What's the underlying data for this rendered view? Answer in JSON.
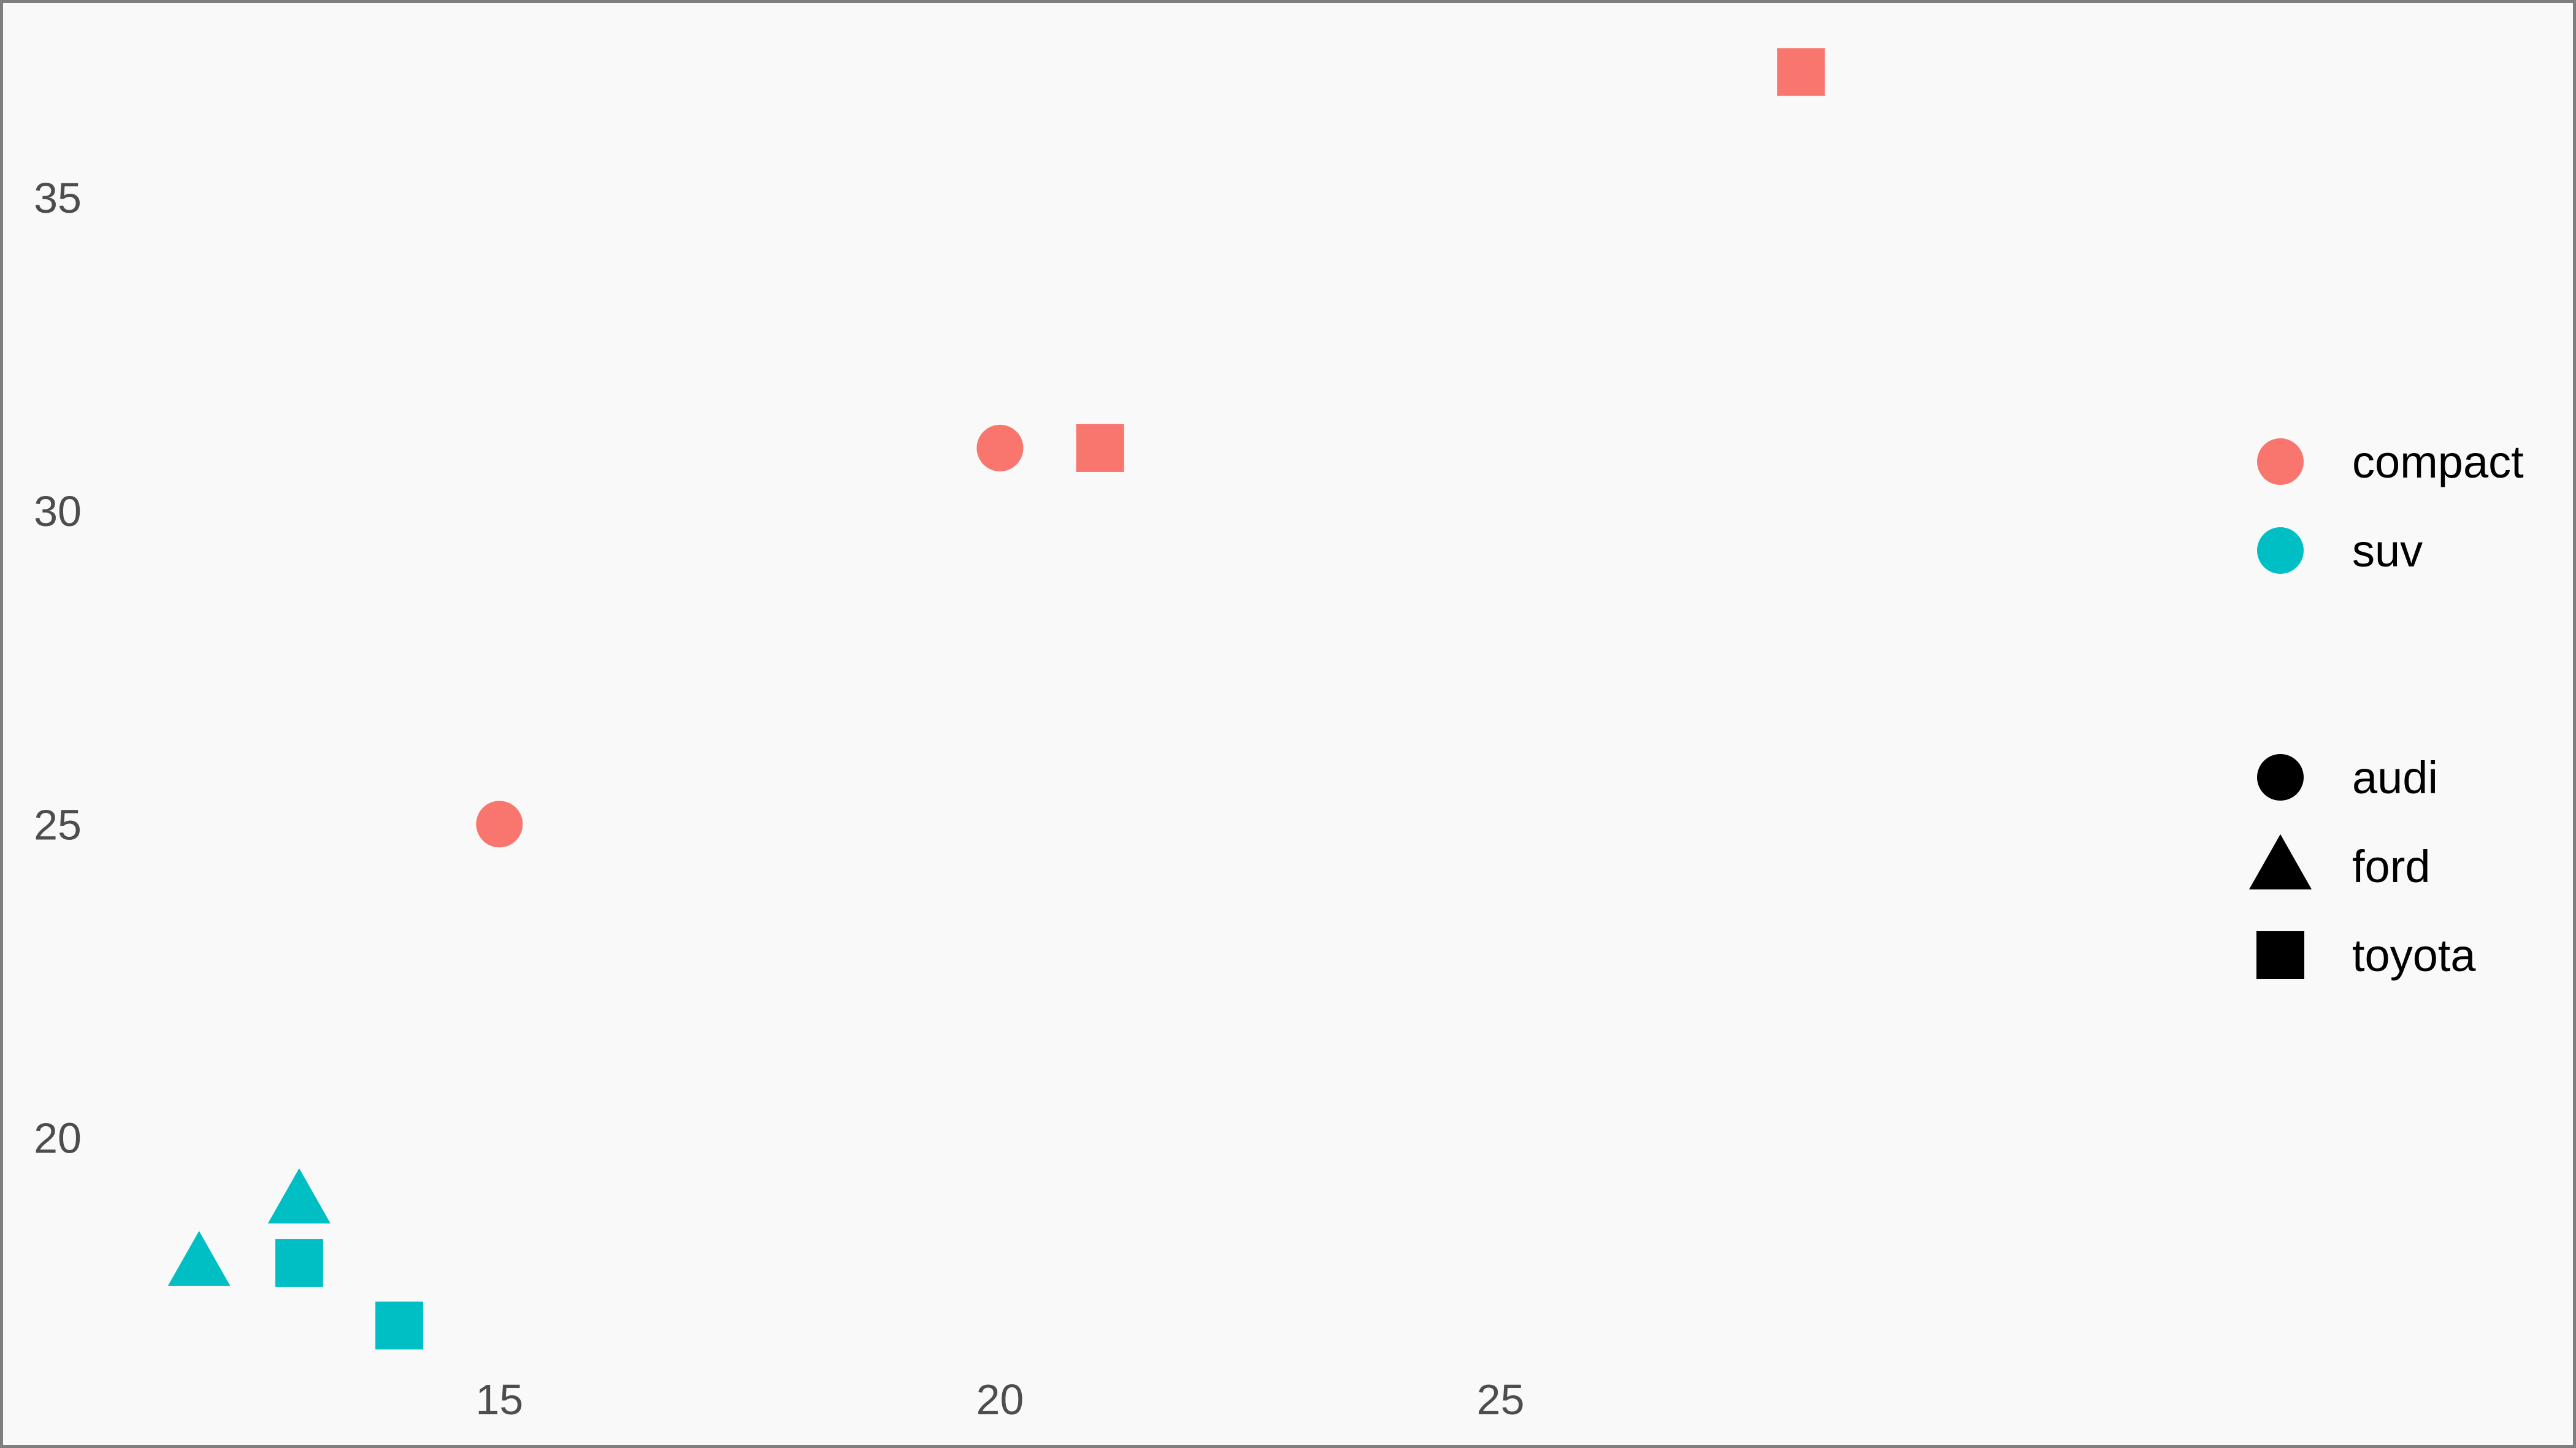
{
  "chart_data": {
    "type": "scatter",
    "title": "",
    "xlabel": "",
    "ylabel": "",
    "xlim": [
      10.9,
      31.3
    ],
    "ylim": [
      15.8,
      38.1
    ],
    "x_ticks": [
      15,
      20,
      25
    ],
    "y_ticks": [
      20,
      25,
      30,
      35
    ],
    "grid": false,
    "legend_position": "right",
    "color_legend": [
      {
        "label": "compact",
        "color": "#F8766D"
      },
      {
        "label": "suv",
        "color": "#00BFC4"
      }
    ],
    "shape_legend": [
      {
        "label": "audi",
        "shape": "circle"
      },
      {
        "label": "ford",
        "shape": "triangle"
      },
      {
        "label": "toyota",
        "shape": "square"
      }
    ],
    "points": [
      {
        "x": 15,
        "y": 25,
        "class": "compact",
        "manufacturer": "audi"
      },
      {
        "x": 20,
        "y": 31,
        "class": "compact",
        "manufacturer": "audi"
      },
      {
        "x": 21,
        "y": 31,
        "class": "compact",
        "manufacturer": "toyota"
      },
      {
        "x": 28,
        "y": 37,
        "class": "compact",
        "manufacturer": "toyota"
      },
      {
        "x": 12,
        "y": 18,
        "class": "suv",
        "manufacturer": "ford"
      },
      {
        "x": 13,
        "y": 19,
        "class": "suv",
        "manufacturer": "ford"
      },
      {
        "x": 13,
        "y": 18,
        "class": "suv",
        "manufacturer": "toyota"
      },
      {
        "x": 14,
        "y": 17,
        "class": "suv",
        "manufacturer": "toyota"
      }
    ]
  }
}
